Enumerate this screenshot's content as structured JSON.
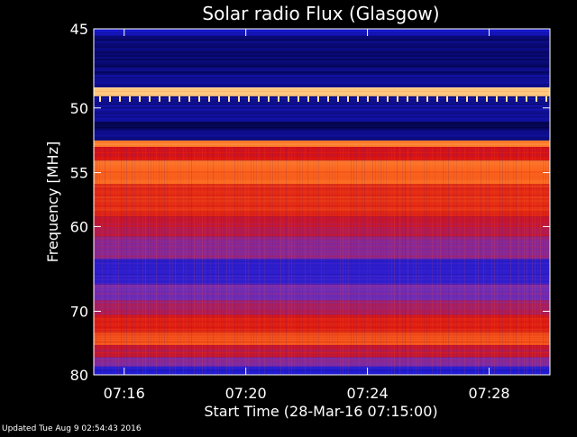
{
  "chart_data": {
    "type": "heatmap",
    "title": "Solar radio Flux (Glasgow)",
    "xlabel": "Start Time (28-Mar-16 07:15:00)",
    "ylabel": "Frequency [MHz]",
    "x_ticks": [
      "07:16",
      "07:20",
      "07:24",
      "07:28"
    ],
    "x_tick_minutes": [
      1,
      5,
      9,
      13
    ],
    "xlim_minutes": [
      0,
      15
    ],
    "y_ticks": [
      45,
      50,
      55,
      60,
      70,
      80
    ],
    "ylim": [
      45,
      80
    ],
    "y_scale": "reciprocal",
    "colormap": [
      "#000033",
      "#1a1ad8",
      "#7a2fb0",
      "#d81010",
      "#ff7020",
      "#ffe6a0"
    ],
    "bands": [
      {
        "f0": 45.0,
        "f1": 45.4,
        "level": 0.18
      },
      {
        "f0": 45.4,
        "f1": 47.8,
        "level": 0.08
      },
      {
        "f0": 47.8,
        "f1": 48.6,
        "level": 0.12
      },
      {
        "f0": 48.6,
        "f1": 49.2,
        "level": 0.95
      },
      {
        "f0": 49.2,
        "f1": 51.0,
        "level": 0.12
      },
      {
        "f0": 51.0,
        "f1": 51.5,
        "level": 0.05
      },
      {
        "f0": 51.5,
        "f1": 52.4,
        "level": 0.1
      },
      {
        "f0": 52.4,
        "f1": 52.9,
        "level": 0.82
      },
      {
        "f0": 52.9,
        "f1": 54.0,
        "level": 0.6
      },
      {
        "f0": 54.0,
        "f1": 56.0,
        "level": 0.78
      },
      {
        "f0": 56.0,
        "f1": 59.0,
        "level": 0.66
      },
      {
        "f0": 59.0,
        "f1": 61.0,
        "level": 0.55
      },
      {
        "f0": 61.0,
        "f1": 63.5,
        "level": 0.45
      },
      {
        "f0": 63.5,
        "f1": 66.5,
        "level": 0.25
      },
      {
        "f0": 66.5,
        "f1": 68.5,
        "level": 0.4
      },
      {
        "f0": 68.5,
        "f1": 70.5,
        "level": 0.5
      },
      {
        "f0": 70.5,
        "f1": 73.0,
        "level": 0.62
      },
      {
        "f0": 73.0,
        "f1": 75.0,
        "level": 0.72
      },
      {
        "f0": 75.0,
        "f1": 77.0,
        "level": 0.55
      },
      {
        "f0": 77.0,
        "f1": 78.5,
        "level": 0.42
      },
      {
        "f0": 78.5,
        "f1": 80.0,
        "level": 0.22
      }
    ],
    "grid": false
  },
  "footer": {
    "updated": "Updated Tue Aug  9 02:54:43 2016"
  }
}
